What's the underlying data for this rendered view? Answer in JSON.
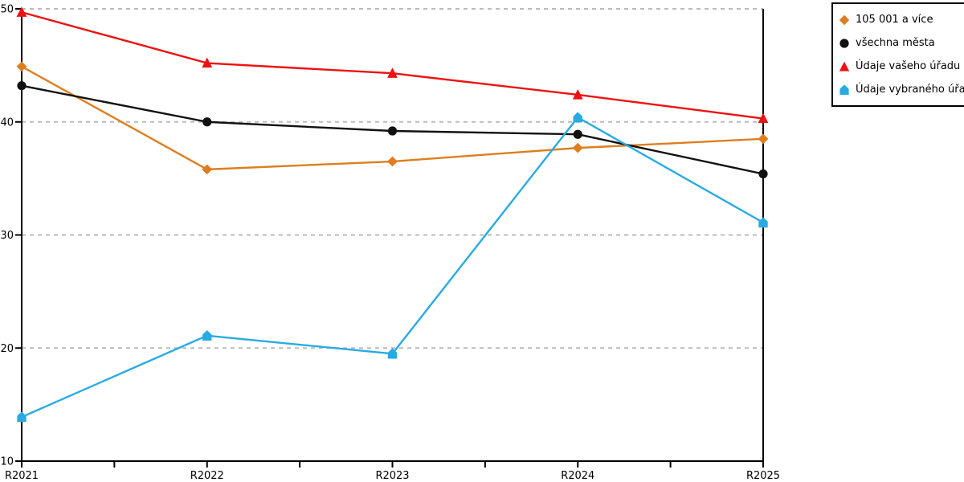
{
  "chart_data": {
    "type": "line",
    "title": "",
    "xlabel": "",
    "ylabel": "",
    "x_categories": [
      "R2021",
      "R2022",
      "R2023",
      "R2024",
      "R2025"
    ],
    "y_ticks": [
      10,
      20,
      30,
      40,
      50
    ],
    "ylim": [
      10,
      50
    ],
    "grid": "horizontal-dashed",
    "legend_position": "top-right",
    "series": [
      {
        "name": "105 001 a více",
        "marker": "diamond",
        "color": "#DE7E1E",
        "values": [
          44.9,
          35.8,
          36.5,
          37.7,
          38.5
        ]
      },
      {
        "name": "všechna města",
        "marker": "circle",
        "color": "#111111",
        "values": [
          43.2,
          40.0,
          39.2,
          38.9,
          35.4
        ]
      },
      {
        "name": "Údaje vašeho úřadu",
        "marker": "triangle",
        "color": "#EE1111",
        "values": [
          49.7,
          45.2,
          44.3,
          42.4,
          40.3
        ]
      },
      {
        "name": "Údaje vybraného úřadu",
        "marker": "pentagon",
        "color": "#29ABE2",
        "values": [
          13.9,
          21.1,
          19.5,
          40.4,
          31.1
        ]
      }
    ]
  },
  "colors": {
    "grid": "#bbbbbb",
    "axis": "#000000",
    "background": "#ffffff",
    "tick_label": "#000000"
  }
}
